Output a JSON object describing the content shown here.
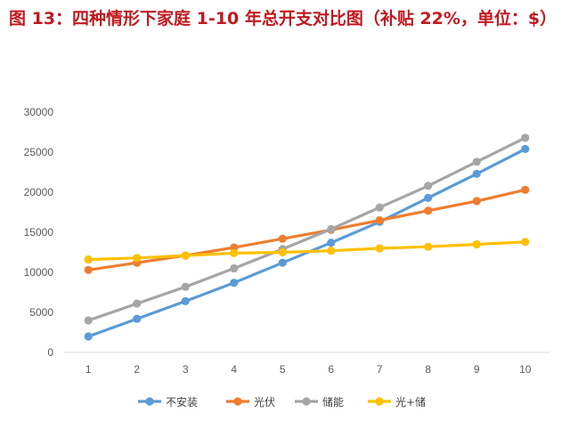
{
  "title": "图 13：四种情形下家庭 1-10 年总开支对比图（补贴 22%，单位：$）",
  "chart_data": {
    "type": "line",
    "title": "图 13：四种情形下家庭 1-10 年总开支对比图（补贴 22%，单位：$）",
    "x": [
      1,
      2,
      3,
      4,
      5,
      6,
      7,
      8,
      9,
      10
    ],
    "ylim": [
      0,
      30000
    ],
    "yticks": [
      0,
      5000,
      10000,
      15000,
      20000,
      25000,
      30000
    ],
    "grid": false,
    "legend_position": "bottom",
    "series": [
      {
        "name": "不安装",
        "color": "#5b9bd5",
        "values": [
          2000,
          4200,
          6400,
          8700,
          11200,
          13700,
          16300,
          19300,
          22300,
          25400
        ]
      },
      {
        "name": "光伏",
        "color": "#ed7d31",
        "values": [
          10300,
          11200,
          12100,
          13100,
          14200,
          15300,
          16500,
          17700,
          18900,
          20300
        ]
      },
      {
        "name": "储能",
        "color": "#a5a5a5",
        "values": [
          4000,
          6100,
          8200,
          10500,
          12900,
          15400,
          18100,
          20800,
          23800,
          26800
        ]
      },
      {
        "name": "光+储",
        "color": "#ffc000",
        "values": [
          11600,
          11800,
          12100,
          12400,
          12500,
          12700,
          13000,
          13200,
          13500,
          13800
        ]
      }
    ]
  }
}
